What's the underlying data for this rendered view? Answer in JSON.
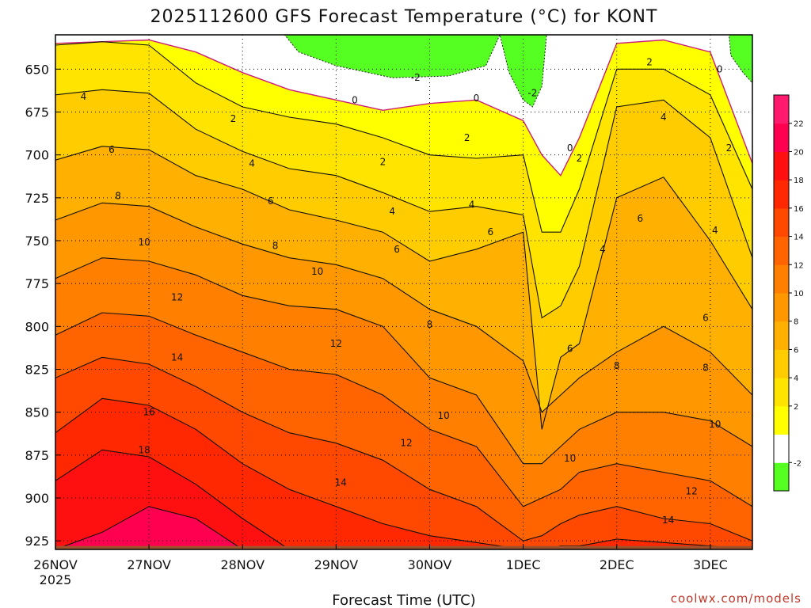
{
  "chart_data": {
    "type": "heatmap",
    "title": "2025112600 GFS Forecast Temperature (°C) for KONT",
    "xlabel": "Forecast Time (UTC)",
    "ylabel": "",
    "credit": "coolwx.com/models",
    "x_ticks": [
      {
        "label": "26NOV",
        "sub": "2025",
        "day": 0
      },
      {
        "label": "27NOV",
        "sub": "",
        "day": 1
      },
      {
        "label": "28NOV",
        "sub": "",
        "day": 2
      },
      {
        "label": "29NOV",
        "sub": "",
        "day": 3
      },
      {
        "label": "30NOV",
        "sub": "",
        "day": 4
      },
      {
        "label": "1DEC",
        "sub": "",
        "day": 5
      },
      {
        "label": "2DEC",
        "sub": "",
        "day": 6
      },
      {
        "label": "3DEC",
        "sub": "",
        "day": 7
      }
    ],
    "xlim": [
      0,
      7.45
    ],
    "y_ticks": [
      650,
      675,
      700,
      725,
      750,
      775,
      800,
      825,
      850,
      875,
      900,
      925
    ],
    "ylim": [
      630,
      930
    ],
    "colorbar": {
      "levels": [
        -4,
        -2,
        0,
        2,
        4,
        6,
        8,
        10,
        12,
        14,
        16,
        18,
        20,
        22,
        24
      ],
      "tick_labels": [
        "-2",
        "2",
        "4",
        "6",
        "8",
        "10",
        "12",
        "14",
        "16",
        "18",
        "20",
        "22"
      ],
      "tick_values": [
        -2,
        2,
        4,
        6,
        8,
        10,
        12,
        14,
        16,
        18,
        20,
        22
      ],
      "colors": [
        "#55ff22",
        "#ffffff",
        "#ffff00",
        "#ffe400",
        "#ffcc00",
        "#ffb000",
        "#ff9800",
        "#ff8000",
        "#ff6400",
        "#ff4800",
        "#ff2800",
        "#ff1010",
        "#ff0050",
        "#ff1a6e"
      ]
    },
    "ground_color": "#a0522d",
    "freezing_line_color": "#cc1f7a",
    "isotherms": [
      {
        "value": 0,
        "x": [
          0.0,
          0.5,
          1.0,
          1.5,
          2.0,
          2.5,
          3.0,
          3.5,
          4.0,
          4.5,
          5.0,
          5.2,
          5.4,
          5.6,
          6.0,
          6.5,
          7.0,
          7.45
        ],
        "p": [
          635,
          634,
          633,
          640,
          652,
          662,
          668,
          674,
          670,
          668,
          680,
          700,
          712,
          690,
          635,
          633,
          640,
          705
        ]
      },
      {
        "value": 2,
        "x": [
          0.0,
          0.5,
          1.0,
          1.5,
          2.0,
          2.5,
          3.0,
          3.5,
          4.0,
          4.5,
          5.0,
          5.2,
          5.4,
          5.6,
          6.0,
          6.5,
          7.0,
          7.45
        ],
        "p": [
          636,
          634,
          636,
          658,
          672,
          678,
          682,
          690,
          700,
          702,
          700,
          745,
          745,
          720,
          650,
          650,
          665,
          720
        ]
      },
      {
        "value": 4,
        "x": [
          0.0,
          0.5,
          1.0,
          1.5,
          2.0,
          2.5,
          3.0,
          3.5,
          4.0,
          4.5,
          5.0,
          5.2,
          5.4,
          5.6,
          6.0,
          6.5,
          7.0,
          7.45
        ],
        "p": [
          665,
          662,
          664,
          685,
          698,
          708,
          712,
          722,
          733,
          730,
          735,
          795,
          788,
          765,
          672,
          668,
          690,
          760
        ]
      },
      {
        "value": 6,
        "x": [
          0.0,
          0.5,
          1.0,
          1.5,
          2.0,
          2.5,
          3.0,
          3.5,
          4.0,
          4.5,
          5.0,
          5.2,
          5.4,
          5.6,
          6.0,
          6.5,
          7.0,
          7.45
        ],
        "p": [
          703,
          695,
          697,
          712,
          720,
          732,
          738,
          745,
          762,
          755,
          745,
          860,
          818,
          810,
          725,
          713,
          750,
          790
        ]
      },
      {
        "value": 8,
        "x": [
          0.0,
          0.5,
          1.0,
          1.5,
          2.0,
          2.5,
          3.0,
          3.5,
          4.0,
          4.5,
          5.0,
          5.2,
          5.4,
          5.6,
          6.0,
          6.5,
          7.0,
          7.45
        ],
        "p": [
          738,
          728,
          730,
          742,
          752,
          760,
          764,
          772,
          790,
          800,
          820,
          850,
          840,
          830,
          815,
          800,
          815,
          840
        ]
      },
      {
        "value": 10,
        "x": [
          0.0,
          0.5,
          1.0,
          1.5,
          2.0,
          2.5,
          3.0,
          3.5,
          4.0,
          4.5,
          5.0,
          5.2,
          5.4,
          5.6,
          6.0,
          6.5,
          7.0,
          7.45
        ],
        "p": [
          772,
          760,
          762,
          770,
          782,
          788,
          790,
          800,
          830,
          840,
          880,
          880,
          870,
          860,
          850,
          850,
          855,
          870
        ]
      },
      {
        "value": 12,
        "x": [
          0.0,
          0.5,
          1.0,
          1.5,
          2.0,
          2.5,
          3.0,
          3.5,
          4.0,
          4.5,
          5.0,
          5.2,
          5.4,
          5.6,
          6.0,
          6.5,
          7.0,
          7.45
        ],
        "p": [
          805,
          792,
          794,
          805,
          815,
          825,
          828,
          840,
          860,
          870,
          905,
          900,
          895,
          885,
          880,
          885,
          890,
          905
        ]
      },
      {
        "value": 14,
        "x": [
          0.0,
          0.5,
          1.0,
          1.5,
          2.0,
          2.5,
          3.0,
          3.5,
          4.0,
          4.5,
          5.0,
          5.2,
          5.4,
          5.6,
          6.0,
          6.5,
          7.0,
          7.45
        ],
        "p": [
          830,
          818,
          822,
          835,
          850,
          862,
          868,
          878,
          895,
          905,
          925,
          922,
          915,
          910,
          905,
          912,
          915,
          925
        ]
      },
      {
        "value": 16,
        "x": [
          0.0,
          0.5,
          1.0,
          1.5,
          2.0,
          2.5,
          3.0,
          3.5,
          4.0,
          4.5,
          5.0,
          5.2,
          5.4,
          5.6,
          6.0,
          6.5,
          7.0,
          7.45
        ],
        "p": [
          862,
          842,
          846,
          860,
          880,
          895,
          905,
          915,
          922,
          926,
          930,
          930,
          928,
          928,
          924,
          926,
          928,
          930
        ]
      },
      {
        "value": 18,
        "x": [
          0.0,
          0.5,
          1.0,
          1.5,
          2.0,
          2.5,
          3.0,
          3.5,
          4.0,
          4.5,
          5.0,
          5.2,
          5.4,
          5.6,
          6.0,
          6.5,
          7.0,
          7.45
        ],
        "p": [
          890,
          872,
          876,
          892,
          912,
          930,
          930,
          930,
          930,
          930,
          930,
          930,
          930,
          930,
          930,
          930,
          930,
          930
        ]
      },
      {
        "value": 20,
        "x": [
          0.0,
          0.5,
          1.0,
          1.5,
          2.0,
          2.5,
          3.0,
          3.5,
          4.0,
          4.5,
          5.0,
          5.2,
          5.4,
          5.6,
          6.0,
          6.5,
          7.0,
          7.45
        ],
        "p": [
          930,
          920,
          905,
          912,
          930,
          930,
          930,
          930,
          930,
          930,
          930,
          930,
          930,
          930,
          930,
          930,
          930,
          930
        ]
      }
    ],
    "contour_labels": [
      {
        "text": "-2",
        "day": 3.85,
        "p": 655
      },
      {
        "text": "-2",
        "day": 5.1,
        "p": 664
      },
      {
        "text": "0",
        "day": 3.2,
        "p": 668
      },
      {
        "text": "0",
        "day": 4.5,
        "p": 667
      },
      {
        "text": "0",
        "day": 5.5,
        "p": 696
      },
      {
        "text": "0",
        "day": 7.1,
        "p": 650
      },
      {
        "text": "2",
        "day": 1.9,
        "p": 679
      },
      {
        "text": "2",
        "day": 3.5,
        "p": 704
      },
      {
        "text": "2",
        "day": 4.4,
        "p": 690
      },
      {
        "text": "2",
        "day": 5.6,
        "p": 702
      },
      {
        "text": "2",
        "day": 6.35,
        "p": 646
      },
      {
        "text": "2",
        "day": 7.2,
        "p": 696
      },
      {
        "text": "4",
        "day": 0.3,
        "p": 666
      },
      {
        "text": "4",
        "day": 2.1,
        "p": 705
      },
      {
        "text": "4",
        "day": 3.6,
        "p": 733
      },
      {
        "text": "4",
        "day": 4.45,
        "p": 729
      },
      {
        "text": "4",
        "day": 5.85,
        "p": 755
      },
      {
        "text": "4",
        "day": 6.5,
        "p": 678
      },
      {
        "text": "4",
        "day": 7.05,
        "p": 744
      },
      {
        "text": "6",
        "day": 0.6,
        "p": 697
      },
      {
        "text": "6",
        "day": 2.3,
        "p": 727
      },
      {
        "text": "6",
        "day": 3.65,
        "p": 755
      },
      {
        "text": "6",
        "day": 4.65,
        "p": 745
      },
      {
        "text": "6",
        "day": 5.5,
        "p": 813
      },
      {
        "text": "6",
        "day": 6.25,
        "p": 737
      },
      {
        "text": "6",
        "day": 6.95,
        "p": 795
      },
      {
        "text": "8",
        "day": 0.67,
        "p": 724
      },
      {
        "text": "8",
        "day": 2.35,
        "p": 753
      },
      {
        "text": "8",
        "day": 4.0,
        "p": 799
      },
      {
        "text": "8",
        "day": 6.0,
        "p": 823
      },
      {
        "text": "8",
        "day": 6.95,
        "p": 824
      },
      {
        "text": "10",
        "day": 0.95,
        "p": 751
      },
      {
        "text": "10",
        "day": 2.8,
        "p": 768
      },
      {
        "text": "10",
        "day": 4.15,
        "p": 852
      },
      {
        "text": "10",
        "day": 5.5,
        "p": 877
      },
      {
        "text": "10",
        "day": 7.05,
        "p": 857
      },
      {
        "text": "12",
        "day": 1.3,
        "p": 783
      },
      {
        "text": "12",
        "day": 3.0,
        "p": 810
      },
      {
        "text": "12",
        "day": 3.75,
        "p": 868
      },
      {
        "text": "12",
        "day": 6.8,
        "p": 896
      },
      {
        "text": "14",
        "day": 1.3,
        "p": 818
      },
      {
        "text": "14",
        "day": 3.05,
        "p": 891
      },
      {
        "text": "14",
        "day": 6.55,
        "p": 913
      },
      {
        "text": "16",
        "day": 1.0,
        "p": 850
      },
      {
        "text": "18",
        "day": 0.95,
        "p": 872
      }
    ]
  }
}
